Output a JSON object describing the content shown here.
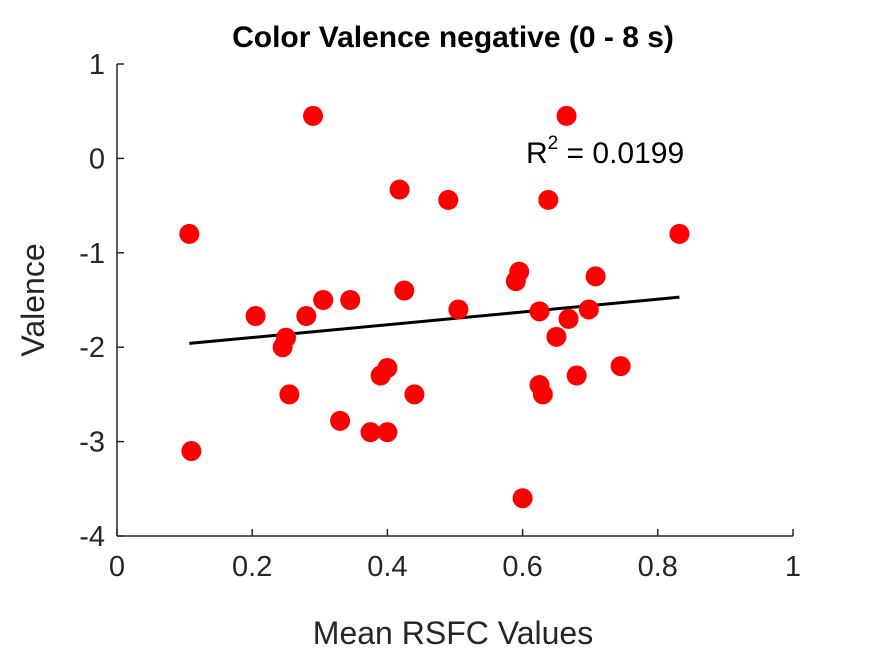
{
  "chart_data": {
    "type": "scatter",
    "title": "Color Valence negative (0 - 8 s)",
    "xlabel": "Mean RSFC Values",
    "ylabel": "Valence",
    "xlim": [
      0,
      1
    ],
    "ylim": [
      -4,
      1
    ],
    "xticks": [
      0,
      0.2,
      0.4,
      0.6,
      0.8,
      1
    ],
    "xtick_labels": [
      "0",
      "0.2",
      "0.4",
      "0.6",
      "0.8",
      "1"
    ],
    "yticks": [
      1,
      0,
      -1,
      -2,
      -3,
      -4
    ],
    "ytick_labels": [
      "1",
      "0",
      "-1",
      "-2",
      "-3",
      "-4"
    ],
    "grid": false,
    "marker_color": "#ff0000",
    "points": [
      {
        "x": 0.107,
        "y": -0.8
      },
      {
        "x": 0.11,
        "y": -3.1
      },
      {
        "x": 0.205,
        "y": -1.67
      },
      {
        "x": 0.245,
        "y": -2.0
      },
      {
        "x": 0.25,
        "y": -1.9
      },
      {
        "x": 0.255,
        "y": -2.5
      },
      {
        "x": 0.28,
        "y": -1.67
      },
      {
        "x": 0.29,
        "y": 0.45
      },
      {
        "x": 0.305,
        "y": -1.5
      },
      {
        "x": 0.33,
        "y": -2.78
      },
      {
        "x": 0.345,
        "y": -1.5
      },
      {
        "x": 0.375,
        "y": -2.9
      },
      {
        "x": 0.39,
        "y": -2.3
      },
      {
        "x": 0.4,
        "y": -2.9
      },
      {
        "x": 0.4,
        "y": -2.22
      },
      {
        "x": 0.418,
        "y": -0.33
      },
      {
        "x": 0.425,
        "y": -1.4
      },
      {
        "x": 0.44,
        "y": -2.5
      },
      {
        "x": 0.49,
        "y": -0.44
      },
      {
        "x": 0.505,
        "y": -1.6
      },
      {
        "x": 0.59,
        "y": -1.3
      },
      {
        "x": 0.595,
        "y": -1.2
      },
      {
        "x": 0.6,
        "y": -3.6
      },
      {
        "x": 0.625,
        "y": -1.62
      },
      {
        "x": 0.625,
        "y": -2.4
      },
      {
        "x": 0.63,
        "y": -2.5
      },
      {
        "x": 0.638,
        "y": -0.44
      },
      {
        "x": 0.65,
        "y": -1.89
      },
      {
        "x": 0.665,
        "y": 0.45
      },
      {
        "x": 0.668,
        "y": -1.7
      },
      {
        "x": 0.68,
        "y": -2.3
      },
      {
        "x": 0.698,
        "y": -1.6
      },
      {
        "x": 0.708,
        "y": -1.25
      },
      {
        "x": 0.745,
        "y": -2.2
      },
      {
        "x": 0.832,
        "y": -0.8
      }
    ],
    "fit_line": {
      "x": [
        0.107,
        0.832
      ],
      "y": [
        -1.96,
        -1.47
      ],
      "color": "#000000"
    },
    "annotation": {
      "prefix": "R",
      "superscript": "2",
      "suffix": " = 0.0199",
      "x": 0.605,
      "y": -0.05
    }
  }
}
